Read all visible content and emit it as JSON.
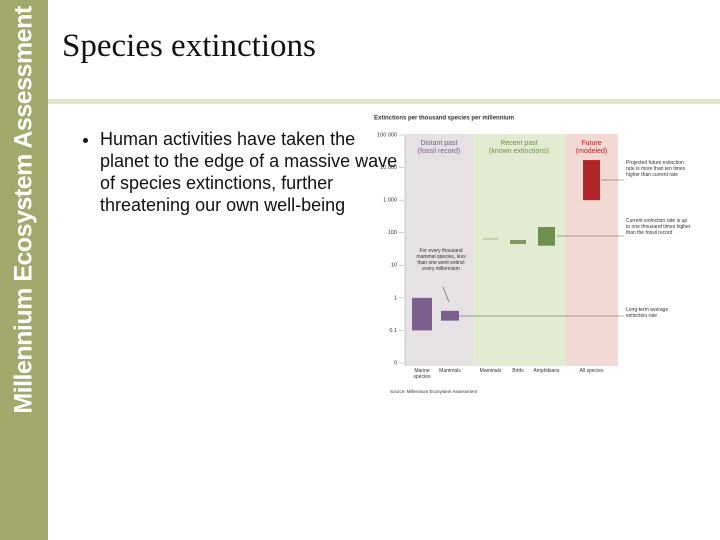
{
  "slide": {
    "brand": "Millennium Ecosystem Assessment",
    "title": "Species extinctions",
    "bullets": [
      "Human activities have taken the planet to the edge of a massive wave of species extinctions, further threatening our own well-being"
    ]
  },
  "chart_data": {
    "type": "range",
    "title": "Extinctions per thousand species per millennium",
    "log_scale": true,
    "ylim": [
      0.01,
      100000
    ],
    "yticks": [
      {
        "value": 0.01,
        "label": "0"
      },
      0.1,
      1,
      10,
      100,
      {
        "value": 1000,
        "label": "1 000"
      },
      {
        "value": 10000,
        "label": "10 000"
      },
      {
        "value": 100000,
        "label": "100 000"
      }
    ],
    "groups": [
      {
        "title": "Distant past",
        "subtitle": "(fossil record)",
        "color": "#7a5a8c",
        "background": "#e6e1e3",
        "categories": [
          "Marine species",
          "Mammals"
        ],
        "values": [
          [
            0.1,
            1
          ],
          [
            0.2,
            0.4
          ]
        ],
        "colors": [
          "#7b5f8d",
          "#7b5f8d"
        ]
      },
      {
        "title": "Recent past",
        "subtitle": "(known extinctions)",
        "color": "#6d8f4a",
        "background": "#e3ecd2",
        "categories": [
          "Mammals",
          "Birds",
          "Amphibians"
        ],
        "values": [
          [
            60,
            70
          ],
          [
            45,
            60
          ],
          [
            40,
            150
          ]
        ],
        "colors": [
          "#c3d0ad",
          "#7f9a63",
          "#6f8f50"
        ]
      },
      {
        "title": "Future",
        "subtitle": "(modeled)",
        "color": "#b0262c",
        "background": "#f3d9d3",
        "categories": [
          "All species"
        ],
        "values": [
          [
            1000,
            17000
          ]
        ],
        "colors": [
          "#b0242a"
        ]
      }
    ],
    "annotations": [
      "For every thousand mammal species, less than one went extinct every millennium",
      "Projected future extinction rate is more than ten times higher than current rate",
      "Current extinction rate is up to one thousand times higher than the fossil record",
      "Long-term average extinction rate"
    ],
    "source": "Source: Millennium Ecosystem Assessment"
  }
}
